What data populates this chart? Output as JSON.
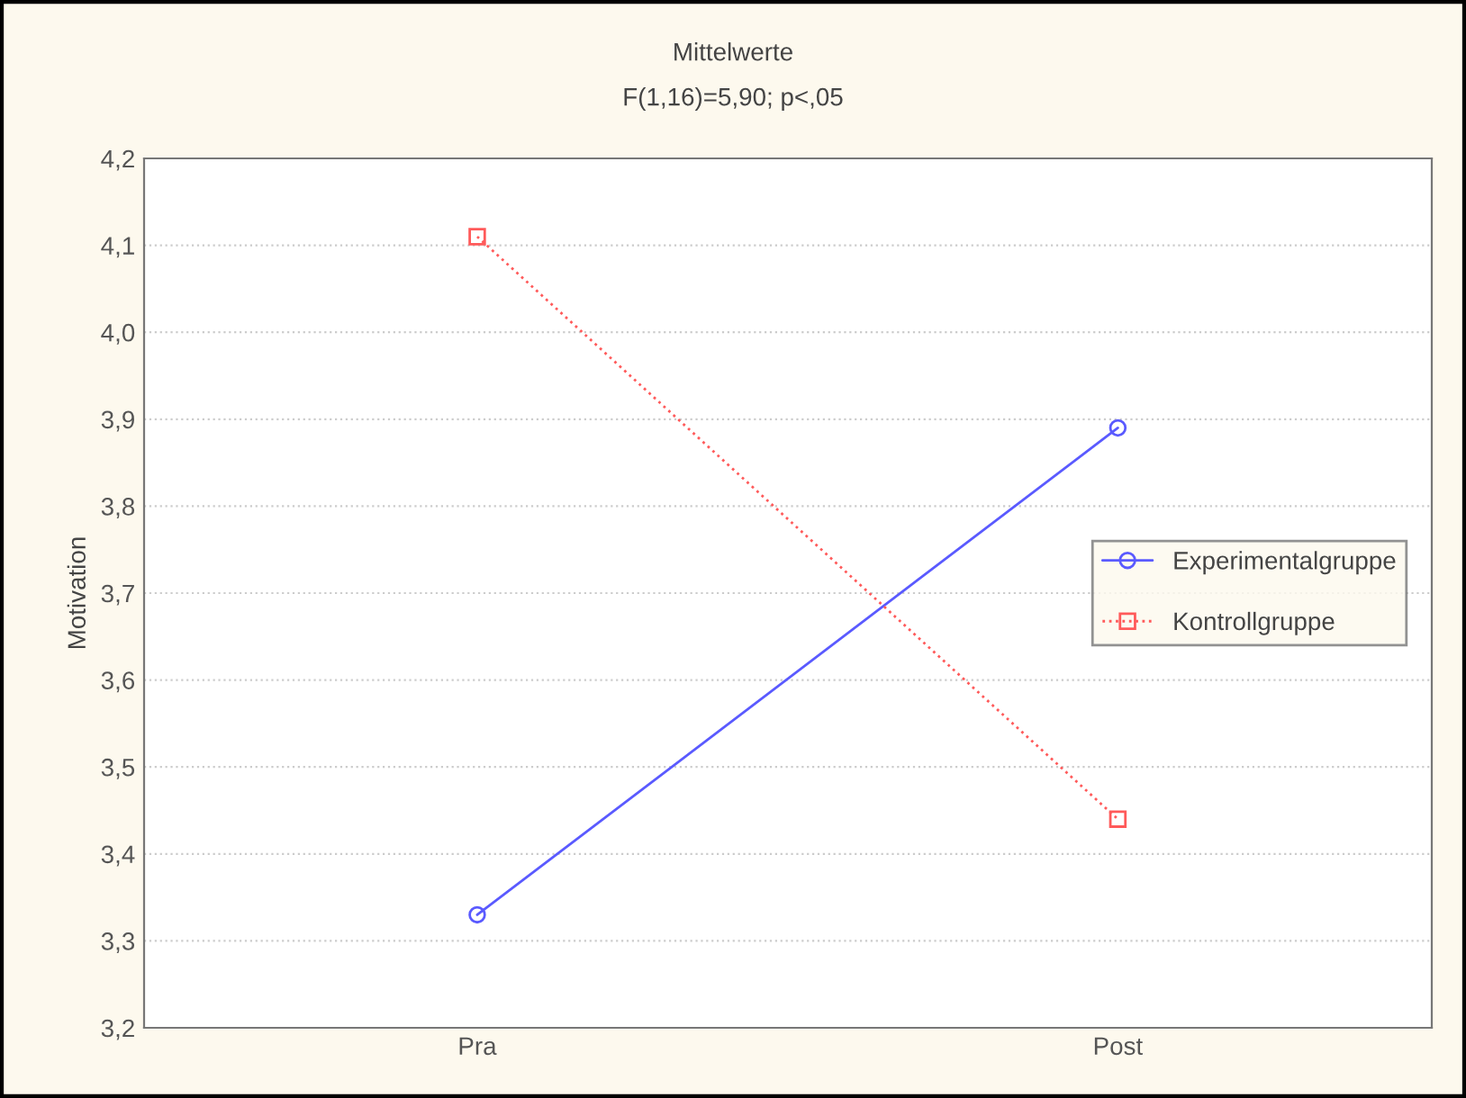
{
  "chart_data": {
    "type": "line",
    "title": "Mittelwerte",
    "subtitle": "F(1,16)=5,90; p<,05",
    "ylabel": "Motivation",
    "categories": [
      "Pra",
      "Post"
    ],
    "series": [
      {
        "name": "Experimentalgruppe",
        "color": "#5a5aff",
        "values": [
          3.33,
          3.89
        ],
        "marker": "circle",
        "line_style": "solid"
      },
      {
        "name": "Kontrollgruppe",
        "color": "#ff5a5a",
        "values": [
          4.11,
          3.44
        ],
        "marker": "square",
        "line_style": "dotted"
      }
    ],
    "ylim": [
      3.2,
      4.2
    ],
    "yticks": [
      {
        "value": 3.2,
        "label": "3,2"
      },
      {
        "value": 3.3,
        "label": "3,3"
      },
      {
        "value": 3.4,
        "label": "3,4"
      },
      {
        "value": 3.5,
        "label": "3,5"
      },
      {
        "value": 3.6,
        "label": "3,6"
      },
      {
        "value": 3.7,
        "label": "3,7"
      },
      {
        "value": 3.8,
        "label": "3,8"
      },
      {
        "value": 3.9,
        "label": "3,9"
      },
      {
        "value": 4.0,
        "label": "4,0"
      },
      {
        "value": 4.1,
        "label": "4,1"
      },
      {
        "value": 4.2,
        "label": "4,2"
      }
    ],
    "grid": "y",
    "legend": "right"
  }
}
